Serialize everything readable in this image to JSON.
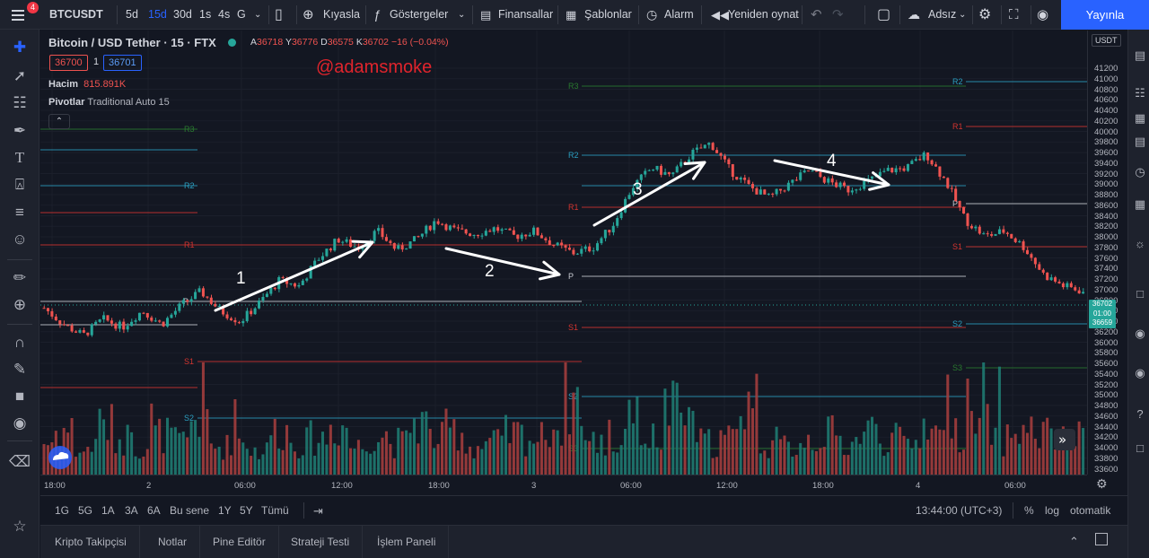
{
  "toolbar": {
    "symbol": "BTCUSDT",
    "menu_badge": "4",
    "intervals": [
      "5d",
      "15d",
      "30d",
      "1s",
      "4s",
      "G"
    ],
    "compare": "Kıyasla",
    "indicators": "Göstergeler",
    "financials": "Finansallar",
    "templates": "Şablonlar",
    "alert": "Alarm",
    "replay": "Yeniden oynat",
    "layout_name": "Adsız",
    "publish": "Yayınla"
  },
  "legend": {
    "title": "Bitcoin / USD Tether · 15 · FTX",
    "o_label": "A",
    "o": "36718",
    "h_label": "Y",
    "h": "36776",
    "l_label": "D",
    "l": "36575",
    "c_label": "K",
    "c": "36702",
    "change": "−16 (−0.04%)",
    "bid": "36700",
    "qty": "1",
    "ask": "36701",
    "volume_label": "Hacim",
    "volume_value": "815.891K",
    "pivots_label": "Pivotlar",
    "pivots_value": "Traditional Auto 15",
    "watermark": "@adamsmoke"
  },
  "price_axis": {
    "currency": "USDT",
    "ticks": [
      "41200",
      "41000",
      "40800",
      "40600",
      "40400",
      "40200",
      "40000",
      "39800",
      "39600",
      "39400",
      "39200",
      "39000",
      "38800",
      "38600",
      "38400",
      "38200",
      "38000",
      "37800",
      "37600",
      "37400",
      "37200",
      "37000",
      "36800",
      "36600",
      "36400",
      "36200",
      "36000",
      "35800",
      "35600",
      "35400",
      "35200",
      "35000",
      "34800",
      "34600",
      "34400",
      "34200",
      "34000",
      "33800",
      "33600"
    ],
    "current_price": "36702",
    "countdown": "01:00",
    "low_label": "36659"
  },
  "time_axis": {
    "ticks": [
      "18:00",
      "2",
      "06:00",
      "12:00",
      "18:00",
      "3",
      "06:00",
      "12:00",
      "18:00",
      "4",
      "06:00"
    ]
  },
  "pivots": {
    "labels": [
      "R3",
      "R2",
      "R1",
      "P",
      "S1",
      "S2",
      "S3"
    ]
  },
  "annotations": [
    "1",
    "2",
    "3",
    "4"
  ],
  "range_bar": {
    "ranges": [
      "1G",
      "5G",
      "1A",
      "3A",
      "6A",
      "Bu sene",
      "1Y",
      "5Y",
      "Tümü"
    ],
    "clock": "13:44:00 (UTC+3)",
    "percent": "%",
    "log": "log",
    "auto": "otomatik"
  },
  "bottom_tabs": [
    "Kripto Takipçisi",
    "Notlar",
    "Pine Editör",
    "Strateji Testi",
    "İşlem Paneli"
  ],
  "colors": {
    "up": "#26a69a",
    "down": "#ef5350",
    "vol_up": "#1f7a71",
    "vol_down": "#a33d3d",
    "r_line": "#d3342f",
    "r2_line": "#2b9fc0",
    "r3_line": "#2a7a2f",
    "p_line": "#c9ccd3",
    "accent": "#2962ff"
  },
  "chart_data": {
    "type": "candlestick",
    "symbol": "BTCUSDT",
    "interval": "15",
    "exchange": "FTX",
    "ylim": [
      33500,
      41300
    ],
    "close_path": [
      36400,
      36100,
      35900,
      36200,
      36050,
      36350,
      36100,
      36450,
      36700,
      36350,
      36150,
      36500,
      36900,
      36800,
      37300,
      37650,
      37500,
      37800,
      37450,
      37650,
      38000,
      37800,
      37750,
      37850,
      37700,
      37800,
      37550,
      37400,
      37500,
      37900,
      38600,
      38950,
      38800,
      39200,
      39400,
      38900,
      38600,
      38400,
      38650,
      38900,
      38700,
      38550,
      38700,
      38900,
      38950,
      39200,
      38700,
      38000,
      37700,
      37800,
      37500,
      37000,
      36800,
      36700
    ],
    "vol_path": [
      40,
      55,
      30,
      60,
      45,
      35,
      50,
      40,
      70,
      35,
      45,
      30,
      55,
      40,
      45,
      60,
      35,
      50,
      40,
      65,
      45,
      55,
      35,
      40,
      50,
      45,
      60,
      95,
      40,
      35,
      65,
      45,
      80,
      55,
      40,
      45,
      95,
      40,
      35,
      45,
      50,
      40,
      55,
      45,
      40,
      50,
      85,
      55,
      60,
      45,
      55,
      50,
      40,
      45
    ]
  }
}
